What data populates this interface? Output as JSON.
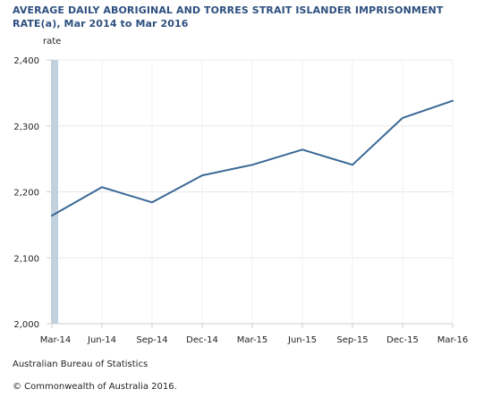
{
  "chart_data": {
    "type": "line",
    "title_line1": "AVERAGE DAILY ABORIGINAL AND TORRES STRAIT ISLANDER IMPRISONMENT",
    "title_line2": "RATE(a), Mar 2014 to Mar 2016",
    "xlabel": "",
    "ylabel": "rate",
    "ylim": [
      2000,
      2400
    ],
    "yticks": [
      "2,000",
      "2,100",
      "2,200",
      "2,300",
      "2,400"
    ],
    "ytick_values": [
      2000,
      2100,
      2200,
      2300,
      2400
    ],
    "categories": [
      "Mar-14",
      "Jun-14",
      "Sep-14",
      "Dec-14",
      "Mar-15",
      "Jun-15",
      "Sep-15",
      "Dec-15",
      "Mar-16"
    ],
    "series": [
      {
        "values": [
          2164,
          2207,
          2184,
          2225,
          2241,
          2264,
          2241,
          2312,
          2338
        ],
        "color": "#3a6896"
      }
    ],
    "grid": true,
    "y_axis_band_color": "#c2d1de",
    "grid_color": "#e8e8e8"
  },
  "footer": {
    "source": "Australian Bureau of Statistics",
    "copyright": "© Commonwealth of Australia 2016."
  }
}
